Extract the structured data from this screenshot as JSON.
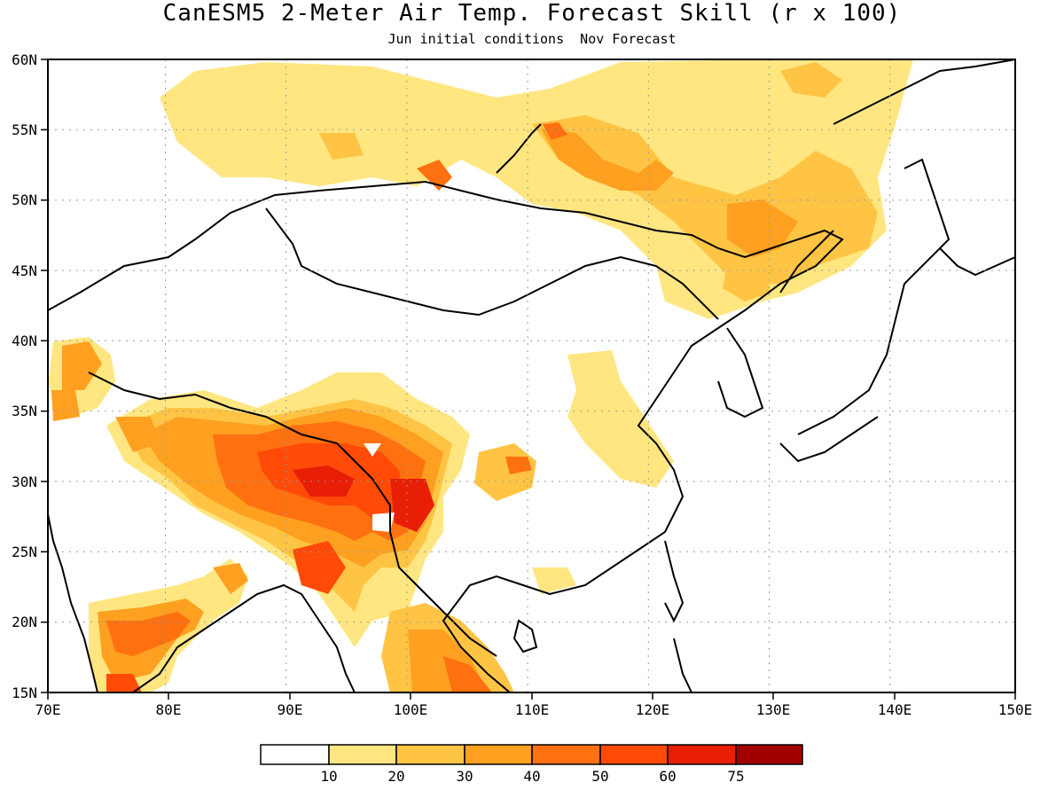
{
  "title": "CanESM5 2-Meter Air Temp. Forecast Skill (r x 100)",
  "subtitle": "Jun initial conditions  Nov Forecast",
  "map": {
    "lon_range": [
      70,
      150
    ],
    "lat_range": [
      15,
      60
    ],
    "lon_ticks": [
      "70E",
      "80E",
      "90E",
      "100E",
      "110E",
      "120E",
      "130E",
      "140E",
      "150E"
    ],
    "lat_ticks": [
      "60N",
      "55N",
      "50N",
      "45N",
      "40N",
      "35N",
      "30N",
      "25N",
      "20N",
      "15N"
    ],
    "gridlines": "dotted"
  },
  "colorbar": {
    "labels": [
      "10",
      "20",
      "30",
      "40",
      "50",
      "60",
      "75"
    ],
    "colors": [
      "#ffffff",
      "#ffe680",
      "#ffc444",
      "#ffa020",
      "#ff7010",
      "#ff4a08",
      "#e81e05",
      "#a00000"
    ]
  }
}
